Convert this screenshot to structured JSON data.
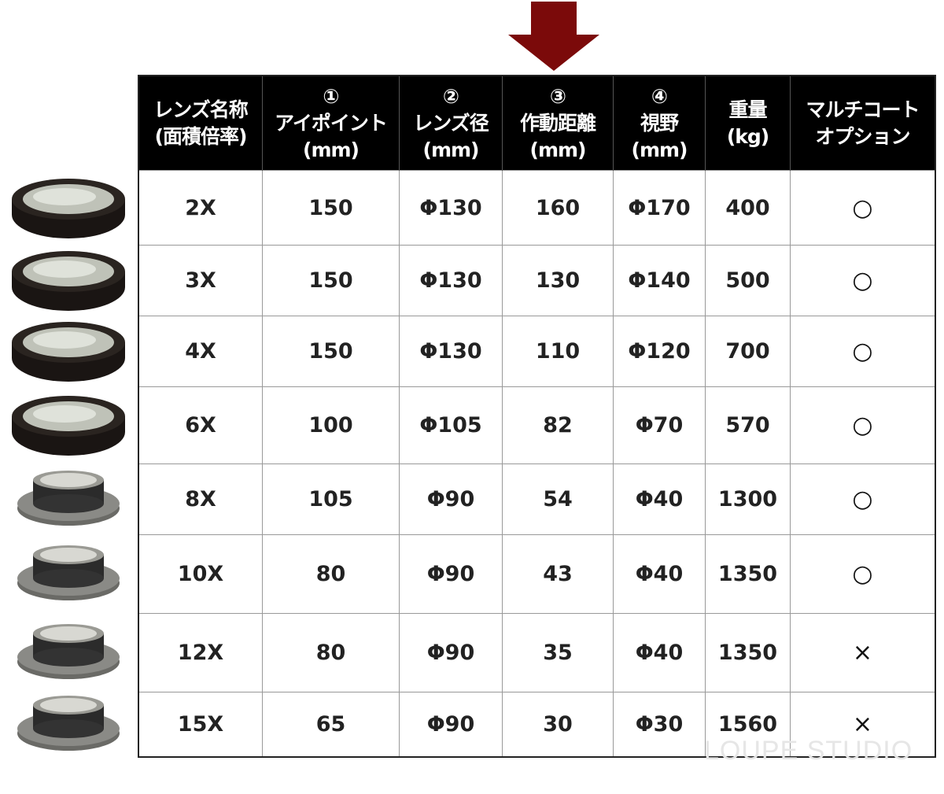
{
  "arrow_color": "#7b0a0a",
  "header": {
    "cols": [
      {
        "line1": "レンズ名称",
        "line2": "(面積倍率)",
        "line3": ""
      },
      {
        "line1": "①",
        "line2": "アイポイント",
        "line3": "(mm)"
      },
      {
        "line1": "②",
        "line2": "レンズ径",
        "line3": "(mm)"
      },
      {
        "line1": "③",
        "line2": "作動距離",
        "line3": "(mm)"
      },
      {
        "line1": "④",
        "line2": "視野",
        "line3": "(mm)"
      },
      {
        "line1": "重量",
        "line2": "(kg)",
        "line3": ""
      },
      {
        "line1": "マルチコート",
        "line2": "オプション",
        "line3": ""
      }
    ]
  },
  "rows": [
    {
      "lens": "2X",
      "eye_point": "150",
      "lens_diameter": "Φ130",
      "working_distance": "160",
      "field": "Φ170",
      "weight": "400",
      "multicoat": "○",
      "lens_style": "black"
    },
    {
      "lens": "3X",
      "eye_point": "150",
      "lens_diameter": "Φ130",
      "working_distance": "130",
      "field": "Φ140",
      "weight": "500",
      "multicoat": "○",
      "lens_style": "black"
    },
    {
      "lens": "4X",
      "eye_point": "150",
      "lens_diameter": "Φ130",
      "working_distance": "110",
      "field": "Φ120",
      "weight": "700",
      "multicoat": "○",
      "lens_style": "black"
    },
    {
      "lens": "6X",
      "eye_point": "100",
      "lens_diameter": "Φ105",
      "working_distance": "82",
      "field": "Φ70",
      "weight": "570",
      "multicoat": "○",
      "lens_style": "black"
    },
    {
      "lens": "8X",
      "eye_point": "105",
      "lens_diameter": "Φ90",
      "working_distance": "54",
      "field": "Φ40",
      "weight": "1300",
      "multicoat": "○",
      "lens_style": "gray"
    },
    {
      "lens": "10X",
      "eye_point": "80",
      "lens_diameter": "Φ90",
      "working_distance": "43",
      "field": "Φ40",
      "weight": "1350",
      "multicoat": "○",
      "lens_style": "gray"
    },
    {
      "lens": "12X",
      "eye_point": "80",
      "lens_diameter": "Φ90",
      "working_distance": "35",
      "field": "Φ40",
      "weight": "1350",
      "multicoat": "×",
      "lens_style": "gray"
    },
    {
      "lens": "15X",
      "eye_point": "65",
      "lens_diameter": "Φ90",
      "working_distance": "30",
      "field": "Φ30",
      "weight": "1560",
      "multicoat": "×",
      "lens_style": "gray"
    }
  ],
  "watermark": "LOUPE STUDIO"
}
